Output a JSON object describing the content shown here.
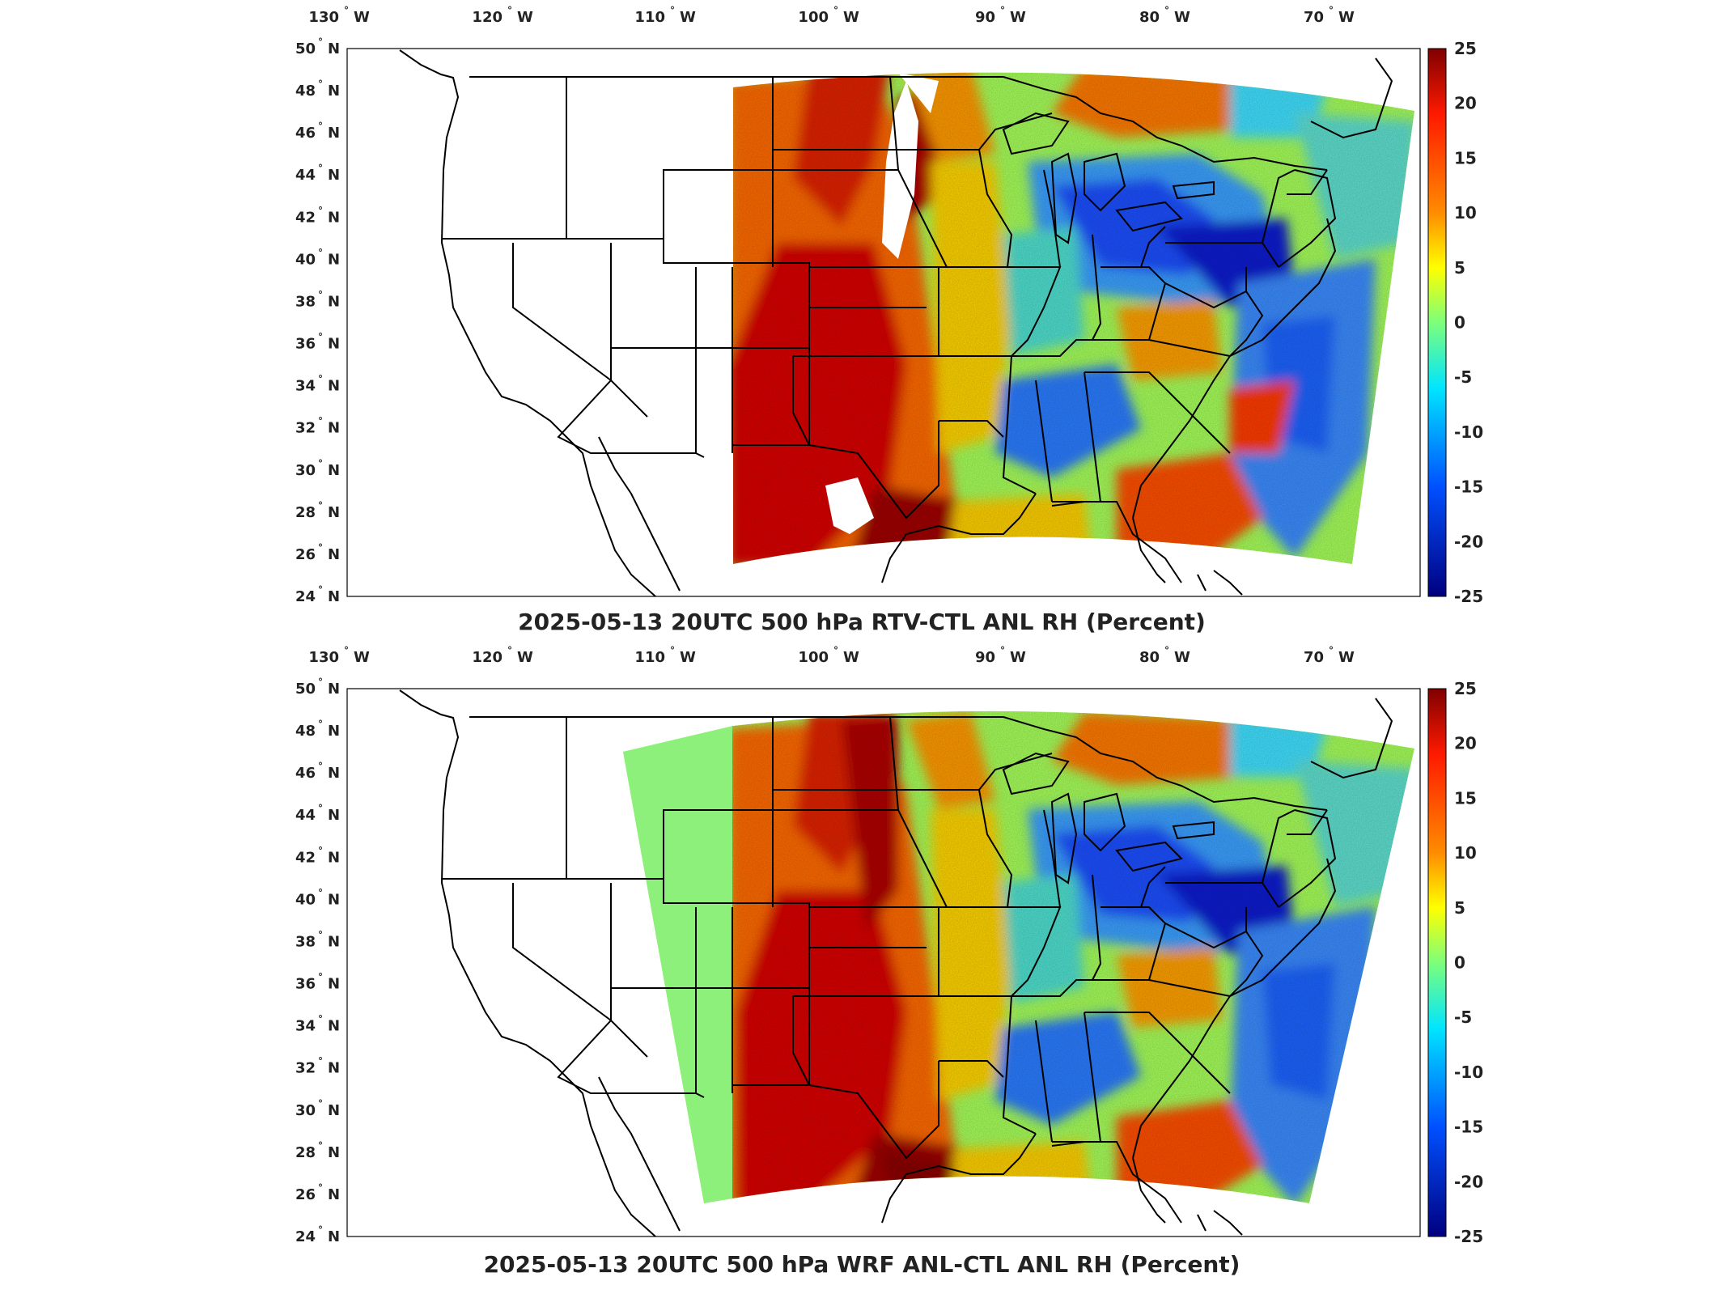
{
  "maps": [
    {
      "title": "2025-05-13 20UTC 500 hPa RTV-CTL ANL RH (Percent)",
      "lon_labels": [
        {
          "value": "130",
          "hemi": "W"
        },
        {
          "value": "120",
          "hemi": "W"
        },
        {
          "value": "110",
          "hemi": "W"
        },
        {
          "value": "100",
          "hemi": "W"
        },
        {
          "value": "90",
          "hemi": "W"
        },
        {
          "value": "80",
          "hemi": "W"
        },
        {
          "value": "70",
          "hemi": "W"
        }
      ],
      "lat_labels": [
        {
          "value": "50",
          "hemi": "N"
        },
        {
          "value": "48",
          "hemi": "N"
        },
        {
          "value": "46",
          "hemi": "N"
        },
        {
          "value": "44",
          "hemi": "N"
        },
        {
          "value": "42",
          "hemi": "N"
        },
        {
          "value": "40",
          "hemi": "N"
        },
        {
          "value": "38",
          "hemi": "N"
        },
        {
          "value": "36",
          "hemi": "N"
        },
        {
          "value": "34",
          "hemi": "N"
        },
        {
          "value": "32",
          "hemi": "N"
        },
        {
          "value": "30",
          "hemi": "N"
        },
        {
          "value": "28",
          "hemi": "N"
        },
        {
          "value": "26",
          "hemi": "N"
        },
        {
          "value": "24",
          "hemi": "N"
        }
      ],
      "colorbar_labels": [
        "25",
        "20",
        "15",
        "10",
        "5",
        "0",
        "-5",
        "-10",
        "-15",
        "-20",
        "-25"
      ]
    },
    {
      "title": "2025-05-13 20UTC 500 hPa WRF ANL-CTL ANL RH (Percent)",
      "lon_labels": [
        {
          "value": "130",
          "hemi": "W"
        },
        {
          "value": "120",
          "hemi": "W"
        },
        {
          "value": "110",
          "hemi": "W"
        },
        {
          "value": "100",
          "hemi": "W"
        },
        {
          "value": "90",
          "hemi": "W"
        },
        {
          "value": "80",
          "hemi": "W"
        },
        {
          "value": "70",
          "hemi": "W"
        }
      ],
      "lat_labels": [
        {
          "value": "50",
          "hemi": "N"
        },
        {
          "value": "48",
          "hemi": "N"
        },
        {
          "value": "46",
          "hemi": "N"
        },
        {
          "value": "44",
          "hemi": "N"
        },
        {
          "value": "42",
          "hemi": "N"
        },
        {
          "value": "40",
          "hemi": "N"
        },
        {
          "value": "38",
          "hemi": "N"
        },
        {
          "value": "36",
          "hemi": "N"
        },
        {
          "value": "34",
          "hemi": "N"
        },
        {
          "value": "32",
          "hemi": "N"
        },
        {
          "value": "30",
          "hemi": "N"
        },
        {
          "value": "28",
          "hemi": "N"
        },
        {
          "value": "26",
          "hemi": "N"
        },
        {
          "value": "24",
          "hemi": "N"
        }
      ],
      "colorbar_labels": [
        "25",
        "20",
        "15",
        "10",
        "5",
        "0",
        "-5",
        "-10",
        "-15",
        "-20",
        "-25"
      ]
    }
  ],
  "colors": {
    "jet_top": "#7f0000",
    "jet_red": "#ff1a00",
    "jet_orange": "#ff8c00",
    "jet_yellow": "#ffff00",
    "jet_green": "#7dff7a",
    "jet_cyan": "#00e5ff",
    "jet_blue": "#0050ff",
    "jet_bottom": "#00007f",
    "boundary": "#000000",
    "frame": "#000000"
  }
}
